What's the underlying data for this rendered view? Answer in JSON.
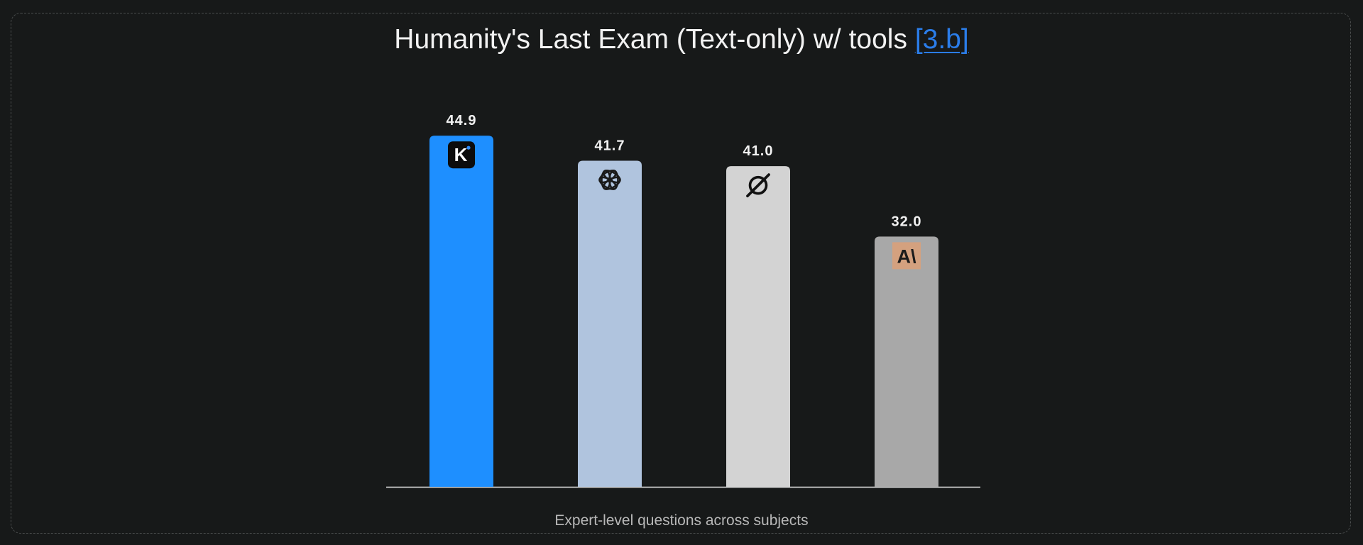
{
  "header": {
    "title": "Humanity's Last Exam (Text-only) w/ tools",
    "ref_label": "[3.b]"
  },
  "chart_data": {
    "type": "bar",
    "title": "Humanity's Last Exam (Text-only) w/ tools",
    "subtitle": "Expert-level questions across subjects",
    "xlabel": "",
    "ylabel": "",
    "ylim": [
      0,
      50
    ],
    "grid": false,
    "values": [
      44.9,
      41.7,
      41.0,
      32.0
    ],
    "value_labels": [
      "44.9",
      "41.7",
      "41.0",
      "32.0"
    ],
    "colors": [
      "#1e8fff",
      "#b0c4de",
      "#d3d3d3",
      "#a8a8a8"
    ],
    "icons": [
      "kimi-logo-icon",
      "openai-logo-icon",
      "grok-logo-icon",
      "anthropic-logo-icon"
    ]
  }
}
